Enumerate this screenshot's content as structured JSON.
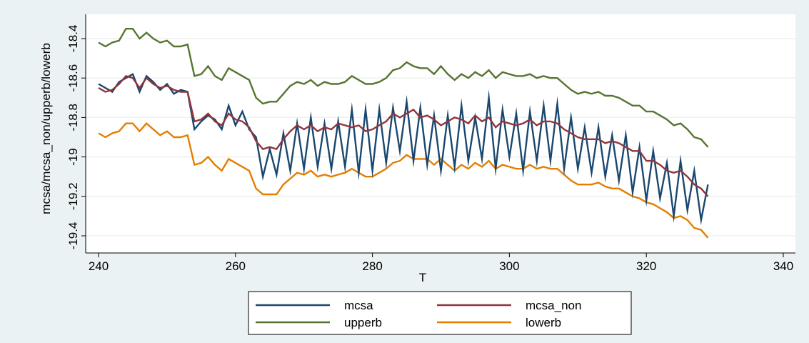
{
  "chart_data": {
    "type": "line",
    "xlabel": "T",
    "ylabel": "mcsa/mcsa_non/upperb/lowerb",
    "xlim": [
      240,
      340
    ],
    "ylim": [
      -19.5,
      -18.35
    ],
    "x_ticks": [
      240,
      260,
      280,
      300,
      320,
      340
    ],
    "x_tick_labels": [
      "240",
      "260",
      "280",
      "300",
      "320",
      "340"
    ],
    "y_ticks": [
      -18.4,
      -18.6,
      -18.8,
      -19.0,
      -19.2,
      -19.4
    ],
    "y_tick_labels": [
      "-18.4",
      "-18.6",
      "-18.8",
      "-19",
      "-19.2",
      "-19.4"
    ],
    "grid": true,
    "legend_position": "bottom",
    "x": [
      240,
      241,
      242,
      243,
      244,
      245,
      246,
      247,
      248,
      249,
      250,
      251,
      252,
      253,
      254,
      255,
      256,
      257,
      258,
      259,
      260,
      261,
      262,
      263,
      264,
      265,
      266,
      267,
      268,
      269,
      270,
      271,
      272,
      273,
      274,
      275,
      276,
      277,
      278,
      279,
      280,
      281,
      282,
      283,
      284,
      285,
      286,
      287,
      288,
      289,
      290,
      291,
      292,
      293,
      294,
      295,
      296,
      297,
      298,
      299,
      300,
      301,
      302,
      303,
      304,
      305,
      306,
      307,
      308,
      309,
      310,
      311,
      312,
      313,
      314,
      315,
      316,
      317,
      318,
      319,
      320,
      321,
      322,
      323,
      324,
      325,
      326,
      327,
      328,
      329
    ],
    "series": [
      {
        "name": "mcsa",
        "color": "#1a476f",
        "values": [
          -18.63,
          -18.65,
          -18.67,
          -18.62,
          -18.6,
          -18.58,
          -18.67,
          -18.59,
          -18.62,
          -18.66,
          -18.63,
          -18.68,
          -18.66,
          -18.67,
          -18.86,
          -18.82,
          -18.79,
          -18.81,
          -18.86,
          -18.74,
          -18.84,
          -18.77,
          -18.86,
          -18.9,
          -19.1,
          -18.96,
          -19.09,
          -18.88,
          -19.07,
          -18.83,
          -19.06,
          -18.8,
          -19.05,
          -18.83,
          -19.06,
          -18.82,
          -19.05,
          -18.76,
          -19.08,
          -18.76,
          -19.07,
          -18.76,
          -19.03,
          -18.75,
          -18.97,
          -18.72,
          -19.02,
          -18.75,
          -19.04,
          -18.79,
          -19.07,
          -18.79,
          -19.05,
          -18.74,
          -19.02,
          -18.8,
          -19.01,
          -18.7,
          -19.06,
          -18.76,
          -19.0,
          -18.78,
          -19.07,
          -18.77,
          -19.02,
          -18.74,
          -19.02,
          -18.73,
          -19.06,
          -18.8,
          -19.06,
          -18.85,
          -19.08,
          -18.85,
          -19.1,
          -18.89,
          -19.12,
          -18.89,
          -19.18,
          -18.95,
          -19.22,
          -18.97,
          -19.21,
          -19.03,
          -19.3,
          -19.02,
          -19.27,
          -19.07,
          -19.32,
          -19.14
        ]
      },
      {
        "name": "mcsa_non",
        "color": "#90353b",
        "values": [
          -18.65,
          -18.67,
          -18.66,
          -18.63,
          -18.59,
          -18.6,
          -18.65,
          -18.6,
          -18.63,
          -18.65,
          -18.64,
          -18.66,
          -18.67,
          -18.67,
          -18.82,
          -18.81,
          -18.78,
          -18.82,
          -18.84,
          -18.78,
          -18.81,
          -18.82,
          -18.85,
          -18.92,
          -18.96,
          -18.95,
          -18.96,
          -18.91,
          -18.87,
          -18.84,
          -18.86,
          -18.84,
          -18.87,
          -18.85,
          -18.86,
          -18.83,
          -18.84,
          -18.85,
          -18.84,
          -18.87,
          -18.86,
          -18.84,
          -18.82,
          -18.78,
          -18.8,
          -18.78,
          -18.76,
          -18.8,
          -18.79,
          -18.81,
          -18.84,
          -18.82,
          -18.8,
          -18.81,
          -18.83,
          -18.79,
          -18.82,
          -18.8,
          -18.85,
          -18.82,
          -18.83,
          -18.84,
          -18.83,
          -18.81,
          -18.84,
          -18.82,
          -18.82,
          -18.83,
          -18.86,
          -18.88,
          -18.9,
          -18.91,
          -18.91,
          -18.91,
          -18.93,
          -18.92,
          -18.93,
          -18.95,
          -18.97,
          -18.97,
          -19.02,
          -19.02,
          -19.04,
          -19.07,
          -19.08,
          -19.07,
          -19.1,
          -19.14,
          -19.16,
          -19.2
        ]
      },
      {
        "name": "upperb",
        "color": "#55752f",
        "values": [
          -18.42,
          -18.44,
          -18.42,
          -18.41,
          -18.35,
          -18.35,
          -18.4,
          -18.37,
          -18.4,
          -18.42,
          -18.41,
          -18.44,
          -18.44,
          -18.43,
          -18.59,
          -18.58,
          -18.54,
          -18.59,
          -18.61,
          -18.55,
          -18.57,
          -18.59,
          -18.61,
          -18.7,
          -18.73,
          -18.72,
          -18.72,
          -18.68,
          -18.64,
          -18.62,
          -18.63,
          -18.61,
          -18.64,
          -18.62,
          -18.63,
          -18.63,
          -18.62,
          -18.59,
          -18.61,
          -18.63,
          -18.63,
          -18.62,
          -18.6,
          -18.56,
          -18.55,
          -18.52,
          -18.54,
          -18.55,
          -18.55,
          -18.58,
          -18.54,
          -18.58,
          -18.61,
          -18.58,
          -18.6,
          -18.57,
          -18.59,
          -18.56,
          -18.6,
          -18.57,
          -18.58,
          -18.59,
          -18.59,
          -18.58,
          -18.6,
          -18.59,
          -18.6,
          -18.6,
          -18.63,
          -18.66,
          -18.68,
          -18.67,
          -18.68,
          -18.67,
          -18.69,
          -18.69,
          -18.7,
          -18.72,
          -18.74,
          -18.74,
          -18.77,
          -18.77,
          -18.79,
          -18.81,
          -18.84,
          -18.83,
          -18.86,
          -18.9,
          -18.91,
          -18.95
        ]
      },
      {
        "name": "lowerb",
        "color": "#e37e00",
        "values": [
          -18.88,
          -18.9,
          -18.88,
          -18.87,
          -18.83,
          -18.83,
          -18.87,
          -18.83,
          -18.86,
          -18.89,
          -18.87,
          -18.9,
          -18.9,
          -18.89,
          -19.04,
          -19.03,
          -19.0,
          -19.04,
          -19.07,
          -19.01,
          -19.03,
          -19.05,
          -19.07,
          -19.16,
          -19.19,
          -19.19,
          -19.19,
          -19.14,
          -19.11,
          -19.08,
          -19.09,
          -19.07,
          -19.1,
          -19.09,
          -19.1,
          -19.09,
          -19.08,
          -19.06,
          -19.08,
          -19.1,
          -19.1,
          -19.08,
          -19.06,
          -19.03,
          -19.02,
          -18.99,
          -19.01,
          -19.01,
          -19.01,
          -19.04,
          -19.01,
          -19.04,
          -19.07,
          -19.04,
          -19.06,
          -19.03,
          -19.05,
          -19.02,
          -19.06,
          -19.04,
          -19.05,
          -19.06,
          -19.06,
          -19.04,
          -19.06,
          -19.05,
          -19.06,
          -19.06,
          -19.09,
          -19.12,
          -19.14,
          -19.14,
          -19.14,
          -19.13,
          -19.15,
          -19.16,
          -19.16,
          -19.18,
          -19.2,
          -19.21,
          -19.23,
          -19.24,
          -19.26,
          -19.28,
          -19.31,
          -19.3,
          -19.32,
          -19.36,
          -19.37,
          -19.41
        ]
      }
    ],
    "legend": [
      {
        "name": "mcsa",
        "color": "#1a476f"
      },
      {
        "name": "mcsa_non",
        "color": "#90353b"
      },
      {
        "name": "upperb",
        "color": "#55752f"
      },
      {
        "name": "lowerb",
        "color": "#e37e00"
      }
    ]
  }
}
